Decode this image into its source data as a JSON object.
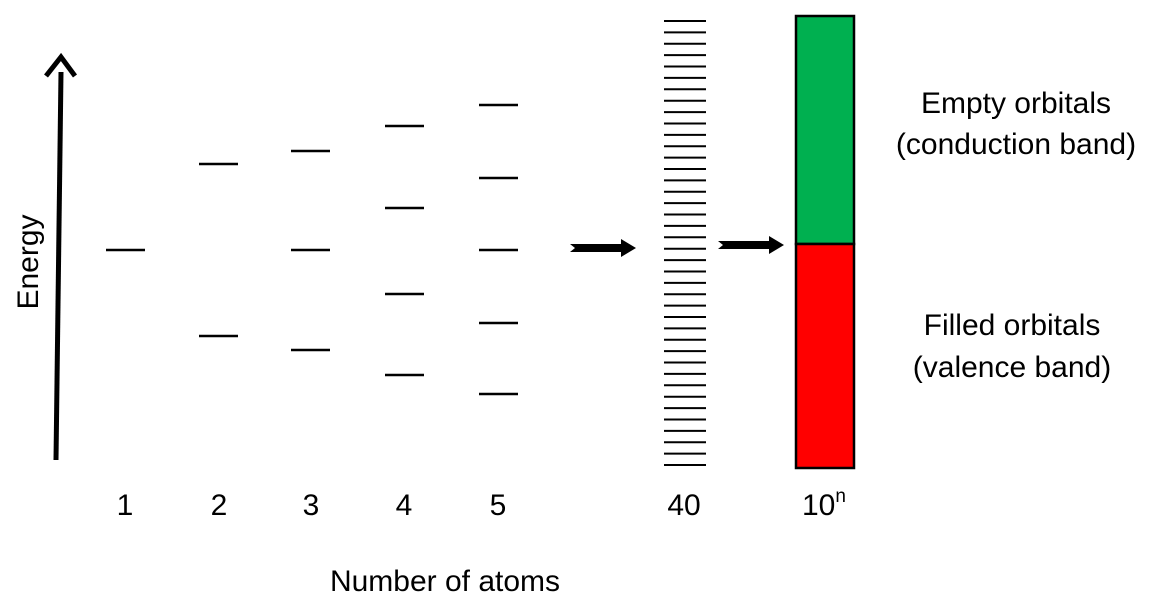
{
  "axis": {
    "y_label": "Energy",
    "x_label": "Number of atoms"
  },
  "atom_counts": [
    {
      "label": "1",
      "levels": 1
    },
    {
      "label": "2",
      "levels": 2
    },
    {
      "label": "3",
      "levels": 3
    },
    {
      "label": "4",
      "levels": 4
    },
    {
      "label": "5",
      "levels": 5
    },
    {
      "label": "40",
      "levels": 40
    },
    {
      "label_base": "10",
      "label_exp": "n",
      "levels": "band"
    }
  ],
  "bands": {
    "conduction": {
      "line1": "Empty orbitals",
      "line2": "(conduction band)",
      "color": "#00b050"
    },
    "valence": {
      "line1": "Filled orbitals",
      "line2": "(valence band)",
      "color": "#ff0000"
    }
  }
}
